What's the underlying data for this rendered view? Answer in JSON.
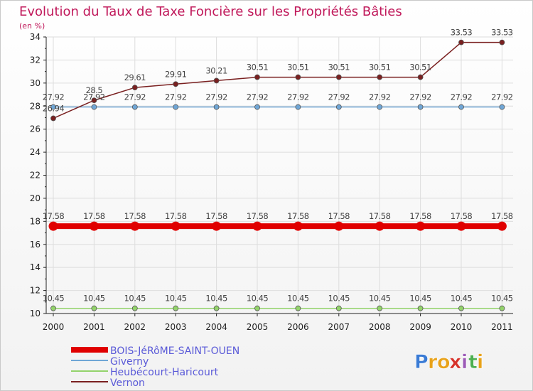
{
  "chart_data": {
    "type": "line",
    "title": "Evolution du Taux de Taxe Foncière sur les Propriétés Bâties",
    "subtitle": "(en %)",
    "xlabel": "",
    "ylabel": "",
    "ylim": [
      10,
      34
    ],
    "yticks": [
      10,
      12,
      14,
      16,
      18,
      20,
      22,
      24,
      26,
      28,
      30,
      32,
      34
    ],
    "categories": [
      "2000",
      "2001",
      "2002",
      "2003",
      "2004",
      "2005",
      "2006",
      "2007",
      "2008",
      "2009",
      "2010",
      "2011"
    ],
    "series": [
      {
        "name": "BOIS-JéRôME-SAINT-OUEN",
        "color": "#e00000",
        "values": [
          17.58,
          17.58,
          17.58,
          17.58,
          17.58,
          17.58,
          17.58,
          17.58,
          17.58,
          17.58,
          17.58,
          17.58
        ],
        "labels": [
          "17.58",
          "17.58",
          "17.58",
          "17.58",
          "17.58",
          "17.58",
          "17.58",
          "17.58",
          "17.58",
          "17.58",
          "17.58",
          "17.58"
        ]
      },
      {
        "name": "Giverny",
        "color": "#6fa6d6",
        "values": [
          27.92,
          27.92,
          27.92,
          27.92,
          27.92,
          27.92,
          27.92,
          27.92,
          27.92,
          27.92,
          27.92,
          27.92
        ],
        "labels": [
          "27.92",
          "27.92",
          "27.92",
          "27.92",
          "27.92",
          "27.92",
          "27.92",
          "27.92",
          "27.92",
          "27.92",
          "27.92",
          "27.92"
        ]
      },
      {
        "name": "Heubécourt-Haricourt",
        "color": "#93d36b",
        "values": [
          10.45,
          10.45,
          10.45,
          10.45,
          10.45,
          10.45,
          10.45,
          10.45,
          10.45,
          10.45,
          10.45,
          10.45
        ],
        "labels": [
          "10.45",
          "10.45",
          "10.45",
          "10.45",
          "10.45",
          "10.45",
          "10.45",
          "10.45",
          "10.45",
          "10.45",
          "10.45",
          "10.45"
        ]
      },
      {
        "name": "Vernon",
        "color": "#7a2020",
        "values": [
          26.94,
          28.5,
          29.61,
          29.91,
          30.21,
          30.51,
          30.51,
          30.51,
          30.51,
          30.51,
          33.53,
          33.53
        ],
        "labels": [
          "26.94",
          "28.5",
          "29.61",
          "29.91",
          "30.21",
          "30.51",
          "30.51",
          "30.51",
          "30.51",
          "30.51",
          "33.53",
          "33.53"
        ]
      }
    ]
  },
  "colors": {
    "title": "#c0185a",
    "legend_text": "#5a5ad8",
    "axis": "#222222",
    "grid": "#dddddd"
  },
  "logo": {
    "letters": [
      "P",
      "r",
      "o",
      "x",
      "i",
      "t",
      "i"
    ],
    "colors": [
      "#3a7bd5",
      "#e8a21a",
      "#e8a21a",
      "#d6322a",
      "#9b59b6",
      "#4caf50",
      "#e8a21a"
    ]
  }
}
